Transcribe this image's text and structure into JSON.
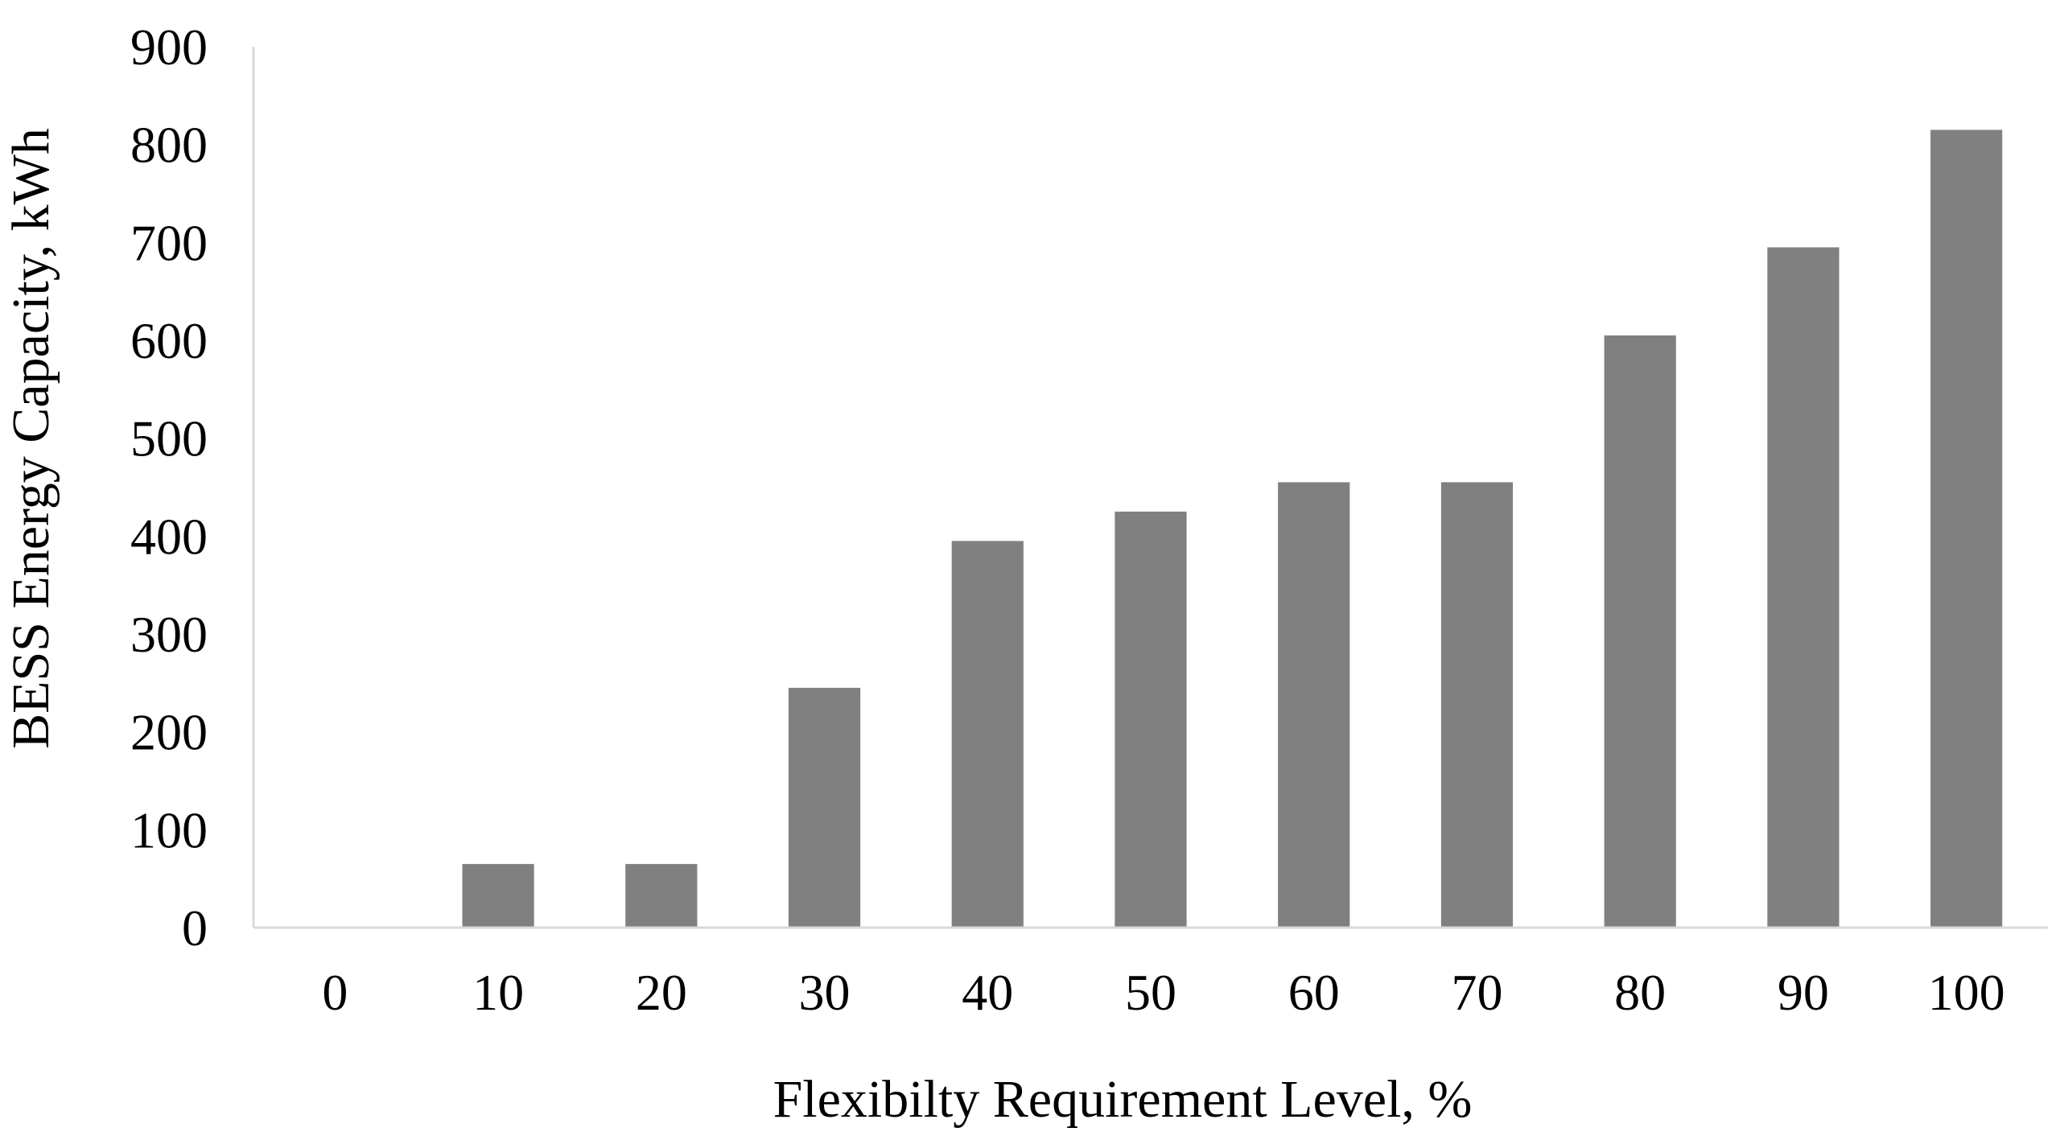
{
  "chart_data": {
    "type": "bar",
    "title": "",
    "xlabel": "Flexibilty Requirement Level, %",
    "ylabel": "BESS Energy Capacity, kWh",
    "categories": [
      "0",
      "10",
      "20",
      "30",
      "40",
      "50",
      "60",
      "70",
      "80",
      "90",
      "100"
    ],
    "values": [
      0,
      65,
      65,
      245,
      395,
      425,
      455,
      455,
      605,
      695,
      815
    ],
    "ylim": [
      0,
      900
    ],
    "yticks": [
      0,
      100,
      200,
      300,
      400,
      500,
      600,
      700,
      800,
      900
    ],
    "grid": false,
    "legend": "none",
    "colors": {
      "bar": "#808080",
      "axis": "#d9d9d9",
      "text": "#000000"
    }
  }
}
